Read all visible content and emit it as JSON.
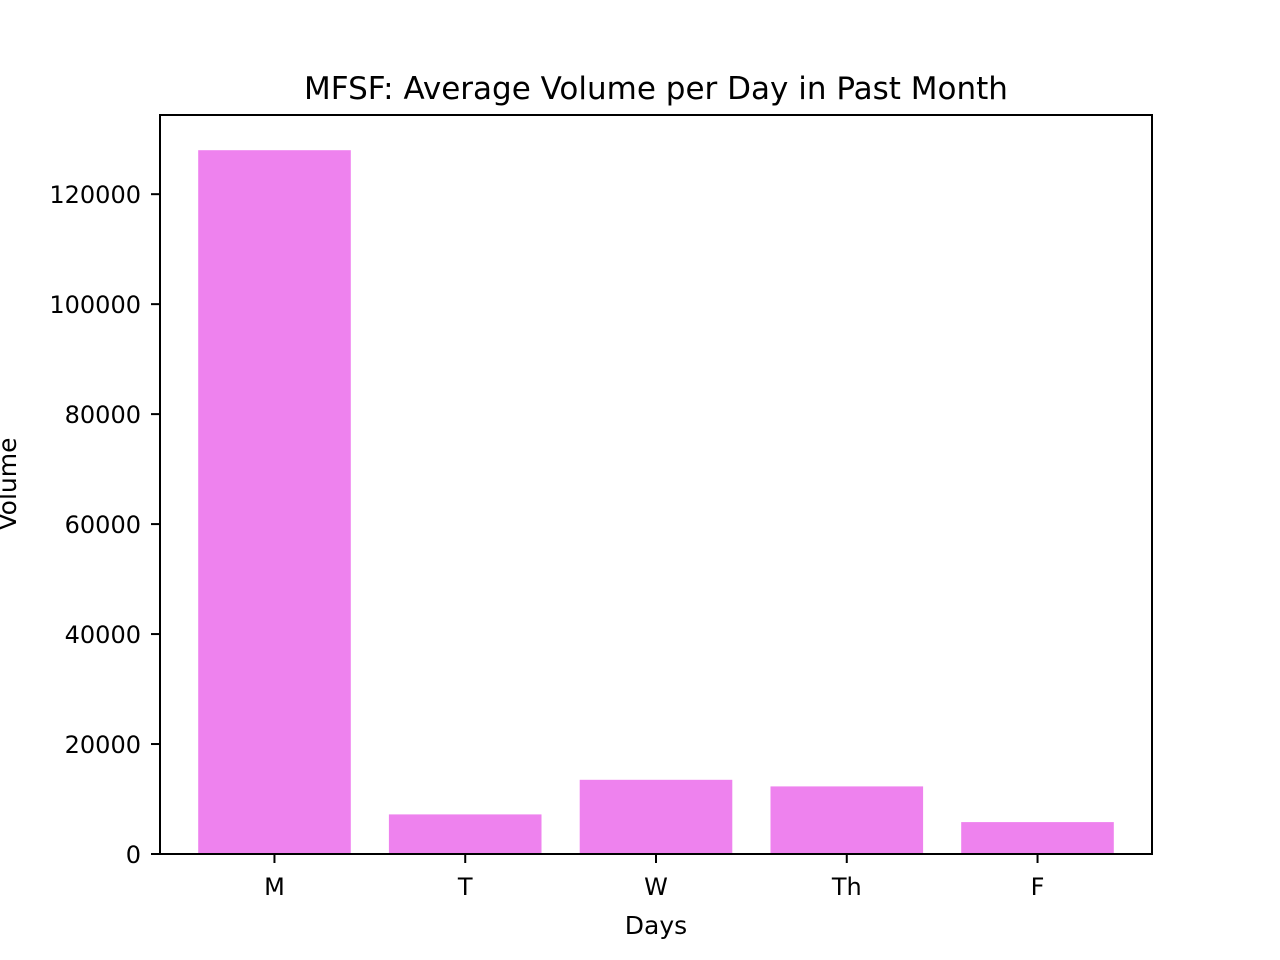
{
  "chart_data": {
    "type": "bar",
    "title": "MFSF: Average Volume per Day in Past Month",
    "xlabel": "Days",
    "ylabel": "Volume",
    "categories": [
      "M",
      "T",
      "W",
      "Th",
      "F"
    ],
    "values": [
      128000,
      7200,
      13500,
      12300,
      5800
    ],
    "ylim": [
      0,
      134400
    ],
    "yticks": [
      0,
      20000,
      40000,
      60000,
      80000,
      100000,
      120000
    ],
    "ytick_labels": [
      "0",
      "20000",
      "40000",
      "60000",
      "80000",
      "100000",
      "120000"
    ],
    "bar_color": "#ee82ee",
    "grid": false,
    "legend": "none"
  }
}
